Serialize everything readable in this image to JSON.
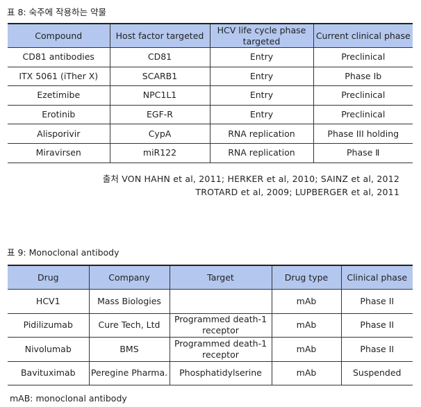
{
  "table8": {
    "caption": "표 8: 숙주에 작용하는 약물",
    "headers": [
      "Compound",
      "Host factor targeted",
      "HCV life cycle phase targeted",
      "Current clinical phase"
    ],
    "rows": [
      [
        "CD81 antibodies",
        "CD81",
        "Entry",
        "Preclinical"
      ],
      [
        "ITX 5061 (iTher X)",
        "SCARB1",
        "Entry",
        "Phase Ib"
      ],
      [
        "Ezetimibe",
        "NPC1L1",
        "Entry",
        "Preclinical"
      ],
      [
        "Erotinib",
        "EGF-R",
        "Entry",
        "Preclinical"
      ],
      [
        "Alisporivir",
        "CypA",
        "RNA replication",
        "Phase III holding"
      ],
      [
        "Miravirsen",
        "miR122",
        "RNA replication",
        "Phase Ⅱ"
      ]
    ],
    "source": [
      "출처 VON HAHN et al, 2011; HERKER et al, 2010; SAINZ et al, 2012",
      "TROTARD et al, 2009; LUPBERGER et al, 2011"
    ]
  },
  "table9": {
    "caption": "표 9: Monoclonal antibody",
    "headers": [
      "Drug",
      "Company",
      "Target",
      "Drug type",
      "Clinical phase"
    ],
    "rows": [
      [
        "HCV1",
        "Mass Biologies",
        "",
        "mAb",
        "Phase II"
      ],
      [
        "Pidilizumab",
        "Cure Tech, Ltd",
        "Programmed death-1 receptor",
        "mAb",
        "Phase II"
      ],
      [
        "Nivolumab",
        "BMS",
        "Programmed death-1 receptor",
        "mAb",
        "Phase II"
      ],
      [
        "Bavituximab",
        "Peregine Pharma.",
        "Phosphatidylserine",
        "mAb",
        "Suspended"
      ]
    ],
    "footnote": "mAB: monoclonal antibody"
  },
  "colors": {
    "header_bg": "#b4c7ef"
  }
}
